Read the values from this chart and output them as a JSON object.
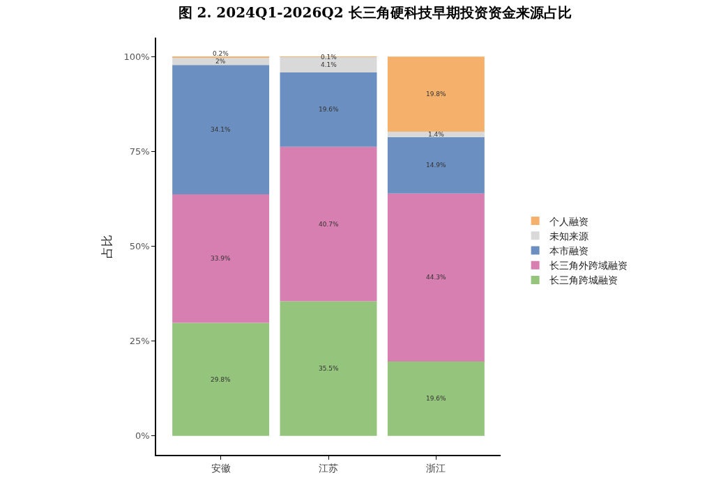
{
  "chart_data": {
    "type": "bar",
    "stacked": true,
    "title": "图 2. 2024Q1-2026Q2 长三角硬科技早期投资资金来源占比",
    "ylabel": "占比",
    "categories": [
      "安徽",
      "江苏",
      "浙江"
    ],
    "series": [
      {
        "name": "长三角跨城融资",
        "color": "#95c47c",
        "values": [
          29.8,
          35.5,
          19.6
        ],
        "value_labels": [
          "29.8%",
          "35.5%",
          "19.6%"
        ]
      },
      {
        "name": "长三角外跨域融资",
        "color": "#d67fb0",
        "values": [
          33.9,
          40.7,
          44.3
        ],
        "value_labels": [
          "33.9%",
          "40.7%",
          "44.3%"
        ]
      },
      {
        "name": "本市融资",
        "color": "#6b8fc0",
        "values": [
          34.1,
          19.6,
          14.9
        ],
        "value_labels": [
          "34.1%",
          "19.6%",
          "14.9%"
        ]
      },
      {
        "name": "未知来源",
        "color": "#d9d9d9",
        "values": [
          2,
          4.1,
          1.4
        ],
        "value_labels": [
          "2%",
          "4.1%",
          "1.4%"
        ]
      },
      {
        "name": "个人融资",
        "color": "#f5b06b",
        "values": [
          0.2,
          0.1,
          19.8
        ],
        "value_labels": [
          "0.2%",
          "0.1%",
          "19.8%"
        ]
      }
    ],
    "ylim": [
      -5,
      105
    ],
    "yticks": [
      {
        "value": 0,
        "label": "0%"
      },
      {
        "value": 25,
        "label": "25%"
      },
      {
        "value": 50,
        "label": "50%"
      },
      {
        "value": 75,
        "label": "75%"
      },
      {
        "value": 100,
        "label": "100%"
      }
    ],
    "grid": false,
    "legend": "right"
  }
}
